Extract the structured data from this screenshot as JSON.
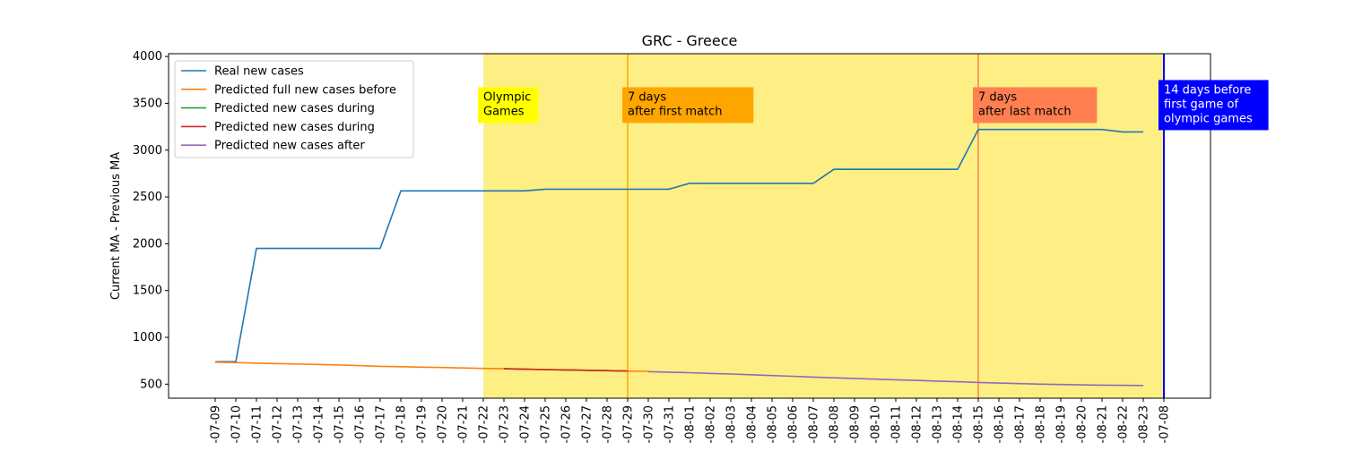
{
  "chart_data": {
    "type": "line",
    "title": "GRC - Greece",
    "xlabel": "",
    "ylabel": "Current MA - Previous MA",
    "ylim": [
      350,
      4030
    ],
    "yticks": [
      500,
      1000,
      1500,
      2000,
      2500,
      3000,
      3500,
      4000
    ],
    "grid": false,
    "legend_position": "top-left",
    "categories": [
      "-07-09",
      "-07-10",
      "-07-11",
      "-07-12",
      "-07-13",
      "-07-14",
      "-07-15",
      "-07-16",
      "-07-17",
      "-07-18",
      "-07-19",
      "-07-20",
      "-07-21",
      "-07-22",
      "-07-23",
      "-07-24",
      "-07-25",
      "-07-26",
      "-07-27",
      "-07-28",
      "-07-29",
      "-07-30",
      "-07-31",
      "-08-01",
      "-08-02",
      "-08-03",
      "-08-04",
      "-08-05",
      "-08-06",
      "-08-07",
      "-08-08",
      "-08-09",
      "-08-10",
      "-08-11",
      "-08-12",
      "-08-13",
      "-08-14",
      "-08-15",
      "-08-16",
      "-08-17",
      "-08-18",
      "-08-19",
      "-08-20",
      "-08-21",
      "-08-22",
      "-08-23",
      "-07-08"
    ],
    "shaded_region": {
      "from": "-07-22",
      "to": "-07-08",
      "color": "#fdef84"
    },
    "series": [
      {
        "name": "Real new cases",
        "color": "#1f77b4",
        "x": [
          "-07-09",
          "-07-10",
          "-07-11",
          "-07-12",
          "-07-13",
          "-07-14",
          "-07-15",
          "-07-16",
          "-07-17",
          "-07-18",
          "-07-19",
          "-07-20",
          "-07-21",
          "-07-22",
          "-07-23",
          "-07-24",
          "-07-25",
          "-07-26",
          "-07-27",
          "-07-28",
          "-07-29",
          "-07-30",
          "-07-31",
          "-08-01",
          "-08-02",
          "-08-03",
          "-08-04",
          "-08-05",
          "-08-06",
          "-08-07",
          "-08-08",
          "-08-09",
          "-08-10",
          "-08-11",
          "-08-12",
          "-08-13",
          "-08-14",
          "-08-15",
          "-08-16",
          "-08-17",
          "-08-18",
          "-08-19",
          "-08-20",
          "-08-21",
          "-08-22",
          "-08-23"
        ],
        "values": [
          740,
          740,
          1950,
          1950,
          1950,
          1950,
          1950,
          1950,
          1950,
          2565,
          2565,
          2565,
          2565,
          2565,
          2565,
          2565,
          2583,
          2583,
          2583,
          2583,
          2583,
          2583,
          2583,
          2645,
          2645,
          2645,
          2645,
          2645,
          2645,
          2645,
          2795,
          2795,
          2795,
          2795,
          2795,
          2795,
          2795,
          3220,
          3220,
          3220,
          3220,
          3220,
          3220,
          3220,
          3195,
          3195
        ]
      },
      {
        "name": "Predicted full new cases before",
        "color": "#ff7f0e",
        "x": [
          "-07-09",
          "-07-10",
          "-07-11",
          "-07-12",
          "-07-13",
          "-07-14",
          "-07-15",
          "-07-16",
          "-07-17",
          "-07-18",
          "-07-19",
          "-07-20",
          "-07-21",
          "-07-22",
          "-07-23",
          "-07-24",
          "-07-25",
          "-07-26",
          "-07-27",
          "-07-28",
          "-07-29",
          "-07-30"
        ],
        "values": [
          735,
          730,
          725,
          720,
          715,
          710,
          705,
          698,
          690,
          686,
          682,
          678,
          673,
          668,
          664,
          660,
          656,
          652,
          648,
          644,
          640,
          637
        ]
      },
      {
        "name": "Predicted new cases during",
        "color": "#2ca02c",
        "x": [
          "-07-23",
          "-07-24",
          "-07-25",
          "-07-26",
          "-07-27",
          "-07-28",
          "-07-29"
        ],
        "values": [
          664,
          660,
          656,
          652,
          648,
          644,
          640
        ]
      },
      {
        "name": "Predicted new cases during",
        "color": "#d62728",
        "x": [
          "-07-23",
          "-07-24",
          "-07-25",
          "-07-26",
          "-07-27",
          "-07-28",
          "-07-29"
        ],
        "values": [
          664,
          660,
          656,
          652,
          648,
          644,
          640
        ]
      },
      {
        "name": "Predicted new cases after",
        "color": "#9467bd",
        "x": [
          "-07-30",
          "-07-31",
          "-08-01",
          "-08-02",
          "-08-03",
          "-08-04",
          "-08-05",
          "-08-06",
          "-08-07",
          "-08-08",
          "-08-09",
          "-08-10",
          "-08-11",
          "-08-12",
          "-08-13",
          "-08-14",
          "-08-15",
          "-08-16",
          "-08-17",
          "-08-18",
          "-08-19",
          "-08-20",
          "-08-21",
          "-08-22",
          "-08-23"
        ],
        "values": [
          634,
          628,
          622,
          615,
          608,
          600,
          592,
          584,
          576,
          568,
          561,
          554,
          547,
          540,
          533,
          526,
          518,
          512,
          506,
          500,
          496,
          492,
          490,
          488,
          486
        ]
      }
    ],
    "vlines": [
      {
        "x": "-07-29",
        "color": "#ffa500",
        "label": "7 days\nafter first match",
        "label_bg": "#ffa500",
        "label_color": "#000000",
        "label_y": 3500
      },
      {
        "x": "-08-15",
        "color": "#ff7f50",
        "label": "7 days\nafter last match",
        "label_bg": "#ff7f50",
        "label_color": "#000000",
        "label_y": 3500
      },
      {
        "x": "-07-08",
        "color": "#0000ff",
        "label": "14 days before\nfirst game of\nolympic games",
        "label_bg": "#0000ff",
        "label_color": "#ffffff",
        "label_y": 3500
      }
    ],
    "annotations": [
      {
        "x": "-07-22",
        "text": "Olympic\nGames",
        "bg": "#ffff00",
        "color": "#000000",
        "y": 3500
      }
    ]
  }
}
